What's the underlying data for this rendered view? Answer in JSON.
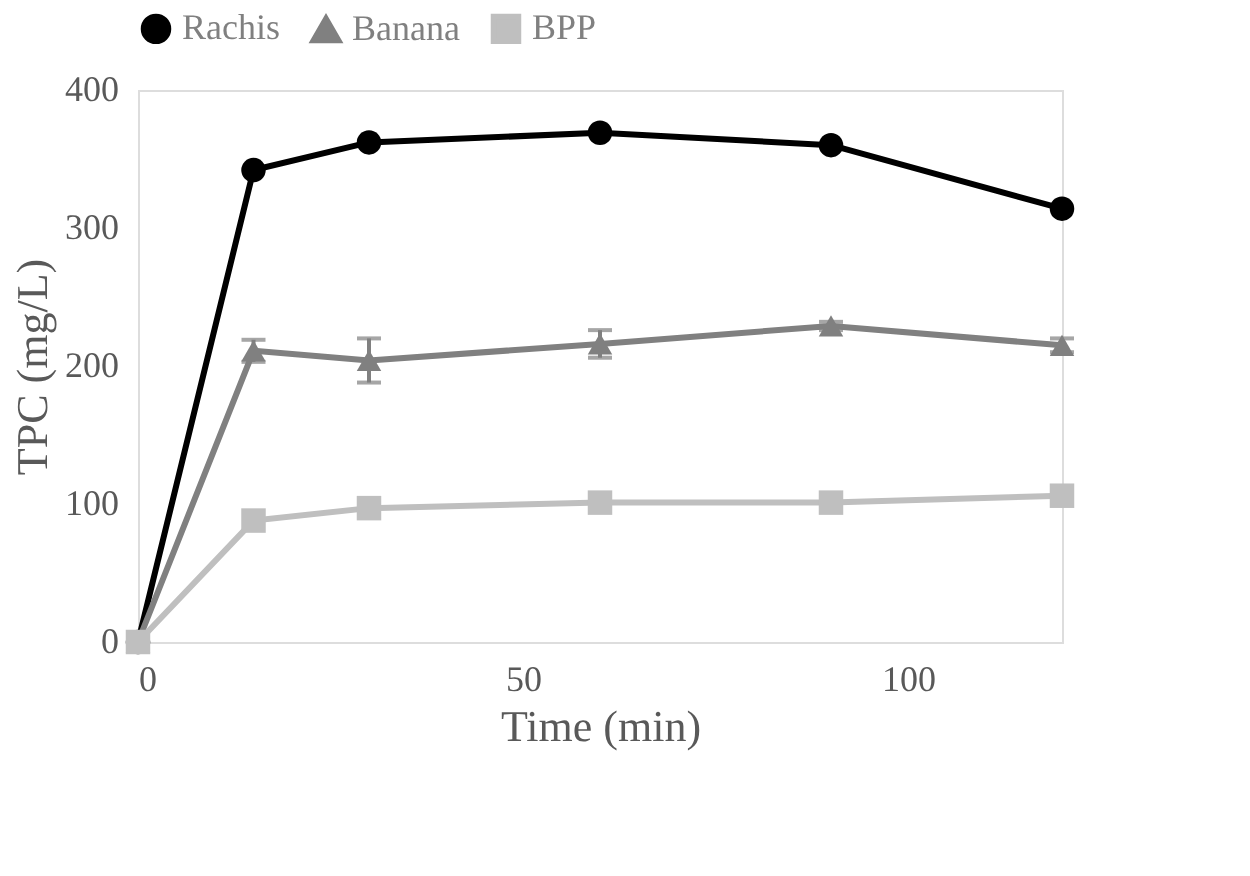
{
  "chart_data": {
    "type": "line",
    "xlabel": "Time (min)",
    "ylabel": "TPC (mg/L)",
    "x": [
      0,
      15,
      30,
      60,
      90,
      120
    ],
    "series": [
      {
        "name": "Rachis",
        "color": "#000000",
        "marker": "circle",
        "values": [
          0,
          342,
          362,
          369,
          360,
          314
        ]
      },
      {
        "name": "Banana",
        "color": "#808080",
        "marker": "triangle",
        "values": [
          0,
          211,
          204,
          216,
          229,
          215
        ],
        "errors": [
          null,
          8,
          16,
          10,
          3,
          5
        ]
      },
      {
        "name": "BPP",
        "color": "#bfbfbf",
        "marker": "square",
        "values": [
          0,
          88,
          97,
          101,
          101,
          106
        ]
      }
    ],
    "xlim": [
      0,
      120
    ],
    "xticks": [
      0,
      50,
      100
    ],
    "ylim": [
      0,
      400
    ],
    "yticks": [
      0,
      100,
      200,
      300,
      400
    ],
    "grid": false,
    "legend": "top",
    "line_style": "solid"
  }
}
